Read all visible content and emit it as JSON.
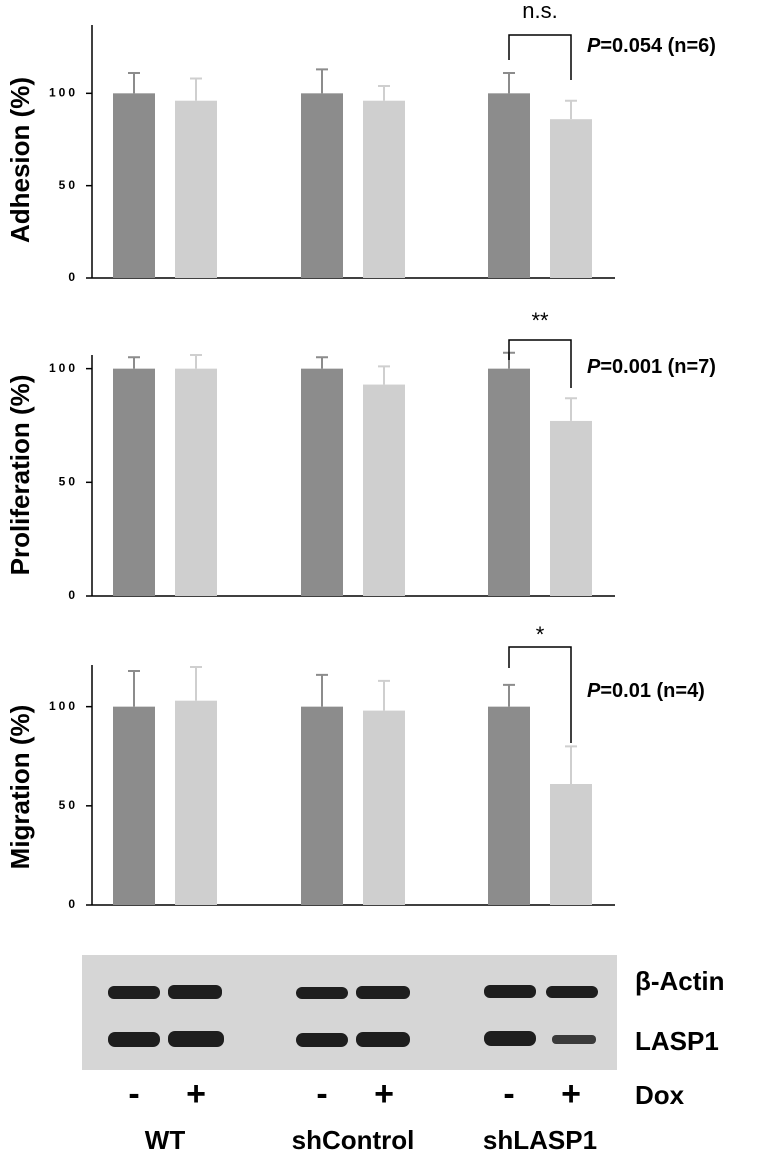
{
  "chart_data": [
    {
      "type": "bar",
      "ylabel": "Adhesion (%)",
      "significance": "n.s.",
      "annotation": "P=0.054 (n=6)",
      "categories": [
        "WT",
        "shControl",
        "shLASP1"
      ],
      "series": [
        {
          "name": "-",
          "color": "#8c8c8c",
          "values": [
            100,
            100,
            100
          ],
          "errors": [
            11,
            13,
            11
          ]
        },
        {
          "name": "+",
          "color": "#cfcfcf",
          "values": [
            96,
            96,
            86
          ],
          "errors": [
            12,
            8,
            10
          ]
        }
      ],
      "ylim": [
        0,
        137
      ],
      "yticks": [
        0,
        50,
        100
      ]
    },
    {
      "type": "bar",
      "ylabel": "Proliferation (%)",
      "significance": "**",
      "annotation": "P=0.001 (n=7)",
      "series": [
        {
          "color": "#8c8c8c",
          "values": [
            100,
            100,
            100
          ],
          "errors": [
            5,
            5,
            7
          ]
        },
        {
          "color": "#cfcfcf",
          "values": [
            100,
            93,
            77
          ],
          "errors": [
            6,
            8,
            10
          ]
        }
      ],
      "ylim": [
        0,
        106
      ],
      "yticks": [
        0,
        50,
        100
      ]
    },
    {
      "type": "bar",
      "ylabel": "Migration (%)",
      "significance": "*",
      "annotation": "P=0.01 (n=4)",
      "series": [
        {
          "color": "#8c8c8c",
          "values": [
            100,
            100,
            100
          ],
          "errors": [
            18,
            16,
            11
          ]
        },
        {
          "color": "#cfcfcf",
          "values": [
            103,
            98,
            61
          ],
          "errors": [
            17,
            15,
            19
          ]
        }
      ],
      "ylim": [
        0,
        121
      ],
      "yticks": [
        0,
        50,
        100
      ]
    }
  ],
  "blot": {
    "bands": [
      "β-Actin",
      "LASP1"
    ],
    "treatment": "Dox"
  }
}
